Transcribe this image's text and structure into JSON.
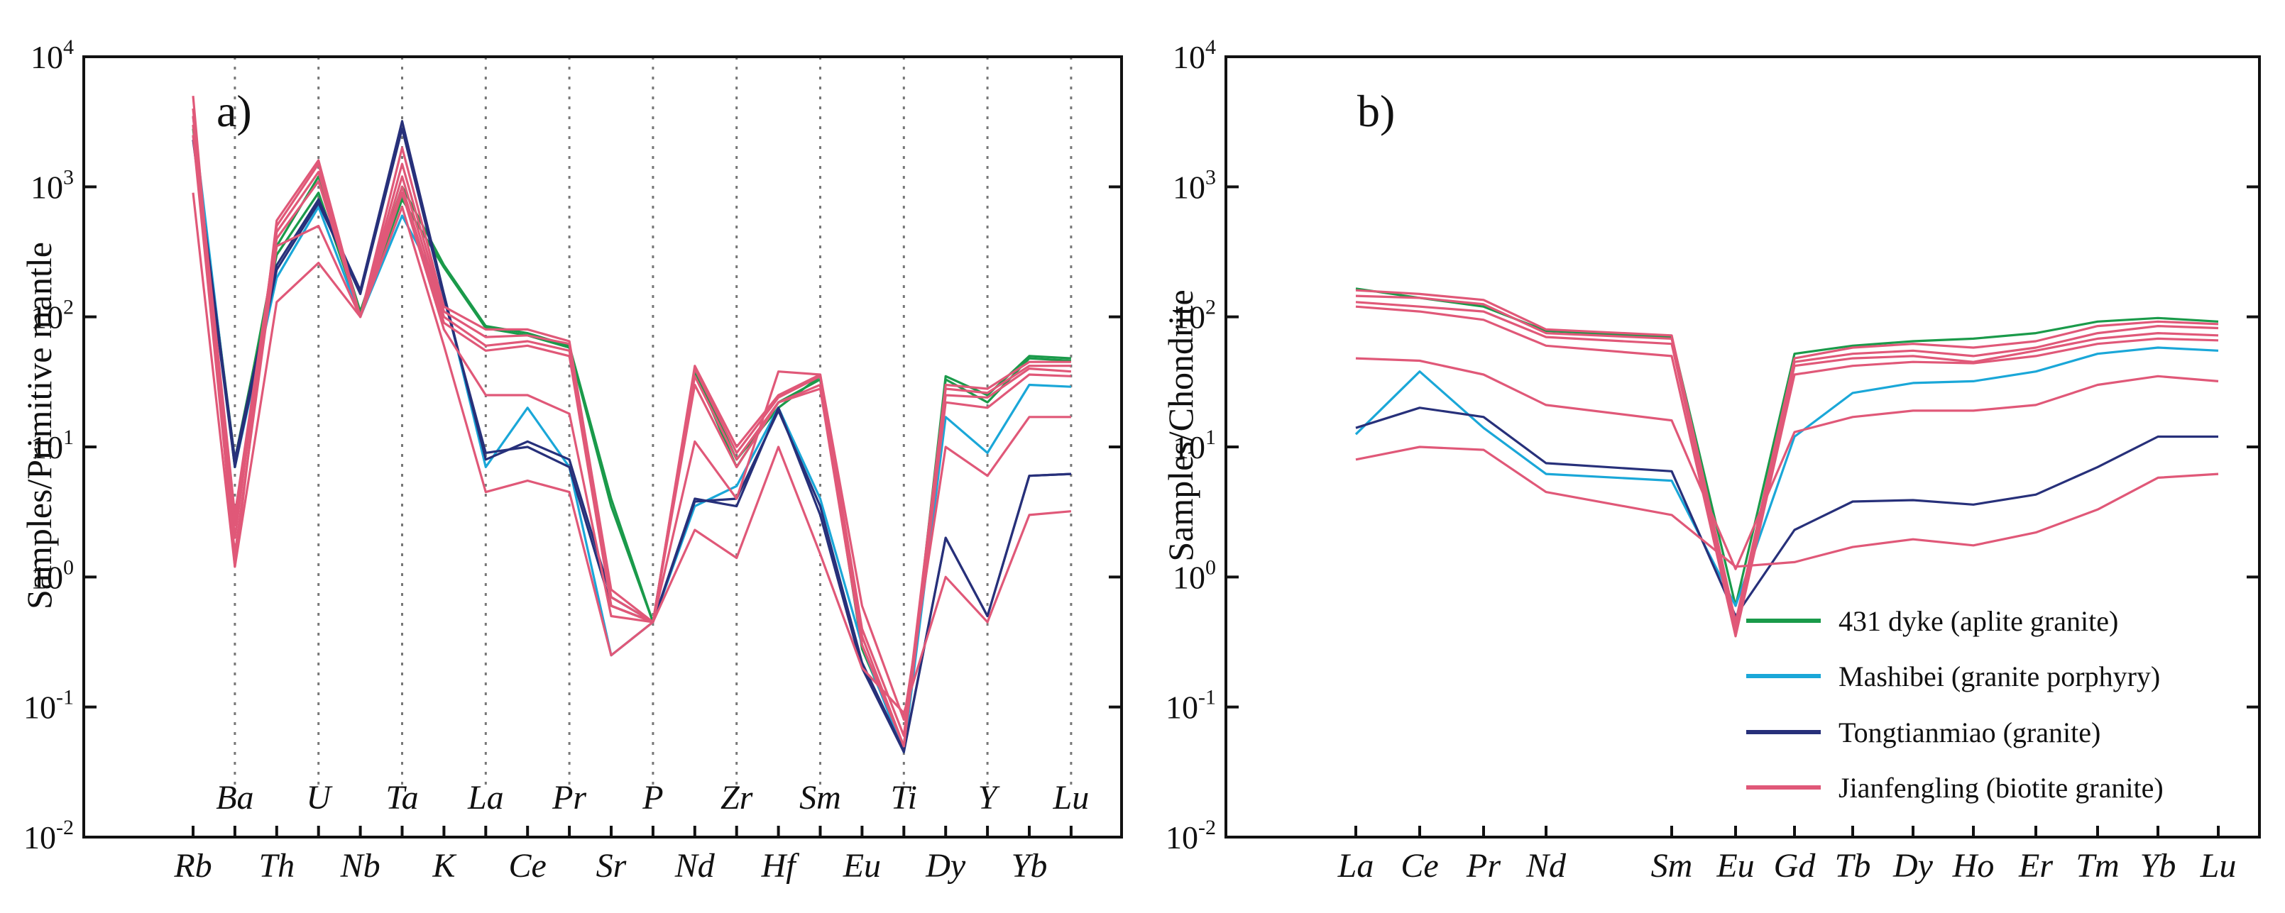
{
  "chart_data": [
    {
      "type": "line",
      "panel_label": "a)",
      "ylabel": "Samples/Primitive  mantle",
      "yscale": "log",
      "ylim": [
        0.01,
        10000
      ],
      "y_ticks": [
        {
          "base": "10",
          "exp": "4"
        },
        {
          "base": "10",
          "exp": "3"
        },
        {
          "base": "10",
          "exp": "2"
        },
        {
          "base": "10",
          "exp": "1"
        },
        {
          "base": "10",
          "exp": "0"
        },
        {
          "base": "10",
          "exp": "-1"
        },
        {
          "base": "10",
          "exp": "-2"
        }
      ],
      "categories": [
        "Rb",
        "Ba",
        "Th",
        "U",
        "Nb",
        "Ta",
        "K",
        "La",
        "Ce",
        "Pr",
        "Sr",
        "P",
        "Nd",
        "Zr",
        "Hf",
        "Sm",
        "Eu",
        "Ti",
        "Dy",
        "Y",
        "Yb",
        "Lu"
      ],
      "grid": "dotted vertical at upper-row elements",
      "series": [
        {
          "group": "431 dyke (aplite  granite)",
          "color": "#1a9a4a",
          "values": [
            3000,
            7,
            350,
            1200,
            110,
            1000,
            250,
            85,
            75,
            60,
            4,
            0.45,
            40,
            8,
            20,
            35,
            0.3,
            0.05,
            35,
            25,
            50,
            48
          ]
        },
        {
          "group": "431 dyke (aplite  granite)",
          "color": "#1a9a4a",
          "values": [
            2800,
            8,
            300,
            900,
            105,
            800,
            240,
            82,
            72,
            58,
            3.5,
            0.45,
            38,
            7,
            22,
            33,
            0.28,
            0.05,
            33,
            22,
            48,
            46
          ]
        },
        {
          "group": "Mashibei (granite  porphyry)",
          "color": "#1aa7d8",
          "values": [
            3500,
            7,
            200,
            700,
            100,
            600,
            150,
            7,
            20,
            7,
            0.25,
            0.45,
            3.5,
            5,
            20,
            4,
            0.3,
            0.045,
            17,
            9,
            30,
            29
          ]
        },
        {
          "group": "Tongtianmiao (granite)",
          "color": "#27307a",
          "values": [
            2500,
            8,
            250,
            800,
            160,
            3200,
            150,
            8,
            11,
            8,
            0.7,
            0.45,
            4,
            3.5,
            20,
            3,
            0.2,
            0.045,
            2,
            0.5,
            6,
            6.2
          ]
        },
        {
          "group": "Tongtianmiao (granite)",
          "color": "#27307a",
          "values": [
            2300,
            7,
            230,
            750,
            150,
            2800,
            140,
            9,
            10,
            7,
            0.6,
            0.45,
            3.8,
            4,
            19,
            3.5,
            0.22,
            0.046,
            2,
            0.5,
            6,
            6.2
          ]
        },
        {
          "group": "Jianfengling (biotite granite)",
          "color": "#e05878",
          "values": [
            5000,
            1.2,
            550,
            1600,
            100,
            2000,
            120,
            80,
            80,
            65,
            0.8,
            0.45,
            42,
            10,
            25,
            36,
            0.4,
            0.06,
            30,
            28,
            45,
            45
          ]
        },
        {
          "group": "Jianfengling (biotite granite)",
          "color": "#e05878",
          "values": [
            4000,
            2,
            500,
            1500,
            100,
            1500,
            110,
            70,
            72,
            62,
            0.7,
            0.45,
            40,
            9,
            24,
            35,
            0.35,
            0.05,
            28,
            26,
            42,
            42
          ]
        },
        {
          "group": "Jianfengling (biotite granite)",
          "color": "#e05878",
          "values": [
            3500,
            3,
            450,
            1300,
            100,
            1200,
            100,
            60,
            65,
            55,
            0.6,
            0.45,
            35,
            8,
            22,
            30,
            0.3,
            0.05,
            25,
            24,
            40,
            38
          ]
        },
        {
          "group": "Jianfengling (biotite granite)",
          "color": "#e05878",
          "values": [
            3000,
            2.5,
            400,
            1100,
            100,
            1000,
            90,
            55,
            60,
            50,
            0.6,
            0.45,
            30,
            7,
            22,
            28,
            0.3,
            0.05,
            22,
            20,
            36,
            35
          ]
        },
        {
          "group": "Jianfengling (biotite granite)",
          "color": "#e05878",
          "values": [
            2500,
            1.5,
            350,
            500,
            100,
            900,
            80,
            25,
            25,
            18,
            0.5,
            0.45,
            11,
            4,
            38,
            36,
            0.6,
            0.08,
            10,
            6,
            17,
            17
          ]
        },
        {
          "group": "Jianfengling (biotite granite)",
          "color": "#e05878",
          "values": [
            900,
            1.2,
            130,
            260,
            100,
            700,
            60,
            4.5,
            5.5,
            4.5,
            0.25,
            0.45,
            2.3,
            1.4,
            10,
            1.5,
            0.2,
            0.09,
            1,
            0.45,
            3,
            3.2
          ]
        }
      ]
    },
    {
      "type": "line",
      "panel_label": "b)",
      "ylabel": "Samples/Chondrite",
      "yscale": "log",
      "ylim": [
        0.01,
        10000
      ],
      "y_ticks": [
        {
          "base": "10",
          "exp": "4"
        },
        {
          "base": "10",
          "exp": "3"
        },
        {
          "base": "10",
          "exp": "2"
        },
        {
          "base": "10",
          "exp": "1"
        },
        {
          "base": "10",
          "exp": "0"
        },
        {
          "base": "10",
          "exp": "-1"
        },
        {
          "base": "10",
          "exp": "-2"
        }
      ],
      "categories": [
        "La",
        "Ce",
        "Pr",
        "Nd",
        "Sm",
        "Eu",
        "Gd",
        "Tb",
        "Dy",
        "Ho",
        "Er",
        "Tm",
        "Yb",
        "Lu"
      ],
      "legend": [
        {
          "label": "431 dyke (aplite  granite)",
          "color": "#1a9a4a"
        },
        {
          "label": "Mashibei (granite  porphyry)",
          "color": "#1aa7d8"
        },
        {
          "label": "Tongtianmiao (granite)",
          "color": "#27307a"
        },
        {
          "label": "Jianfengling (biotite granite)",
          "color": "#e05878"
        }
      ],
      "legend_position": "lower-right",
      "series": [
        {
          "group": "431 dyke (aplite  granite)",
          "color": "#1a9a4a",
          "values": [
            165,
            140,
            120,
            78,
            70,
            0.6,
            52,
            60,
            65,
            68,
            75,
            92,
            98,
            92
          ]
        },
        {
          "group": "Mashibei (granite  porphyry)",
          "color": "#1aa7d8",
          "values": [
            12.5,
            38,
            14,
            6.2,
            5.5,
            0.6,
            12,
            26,
            31,
            32,
            38,
            52,
            58,
            55
          ]
        },
        {
          "group": "Tongtianmiao (granite)",
          "color": "#27307a",
          "values": [
            14,
            20,
            17,
            7.5,
            6.5,
            0.5,
            2.3,
            3.8,
            3.9,
            3.6,
            4.3,
            7,
            12,
            12
          ]
        },
        {
          "group": "Jianfengling (biotite granite)",
          "color": "#e05878",
          "values": [
            160,
            150,
            135,
            80,
            72,
            0.45,
            48,
            58,
            62,
            58,
            65,
            85,
            92,
            88
          ]
        },
        {
          "group": "Jianfengling (biotite granite)",
          "color": "#e05878",
          "values": [
            145,
            140,
            125,
            75,
            68,
            0.4,
            45,
            52,
            55,
            50,
            58,
            75,
            85,
            82
          ]
        },
        {
          "group": "Jianfengling (biotite granite)",
          "color": "#e05878",
          "values": [
            130,
            120,
            110,
            70,
            62,
            0.38,
            42,
            48,
            50,
            45,
            55,
            68,
            75,
            72
          ]
        },
        {
          "group": "Jianfengling (biotite granite)",
          "color": "#e05878",
          "values": [
            120,
            110,
            95,
            60,
            50,
            0.35,
            36,
            42,
            45,
            44,
            50,
            62,
            68,
            66
          ]
        },
        {
          "group": "Jianfengling (biotite granite)",
          "color": "#e05878",
          "values": [
            48,
            46,
            36,
            21,
            16,
            1.15,
            13,
            17,
            19,
            19,
            21,
            30,
            35,
            32
          ]
        },
        {
          "group": "Jianfengling (biotite granite)",
          "color": "#e05878",
          "values": [
            8,
            10,
            9.5,
            4.5,
            3,
            1.2,
            1.3,
            1.7,
            1.95,
            1.75,
            2.2,
            3.3,
            5.8,
            6.2
          ]
        }
      ]
    }
  ]
}
